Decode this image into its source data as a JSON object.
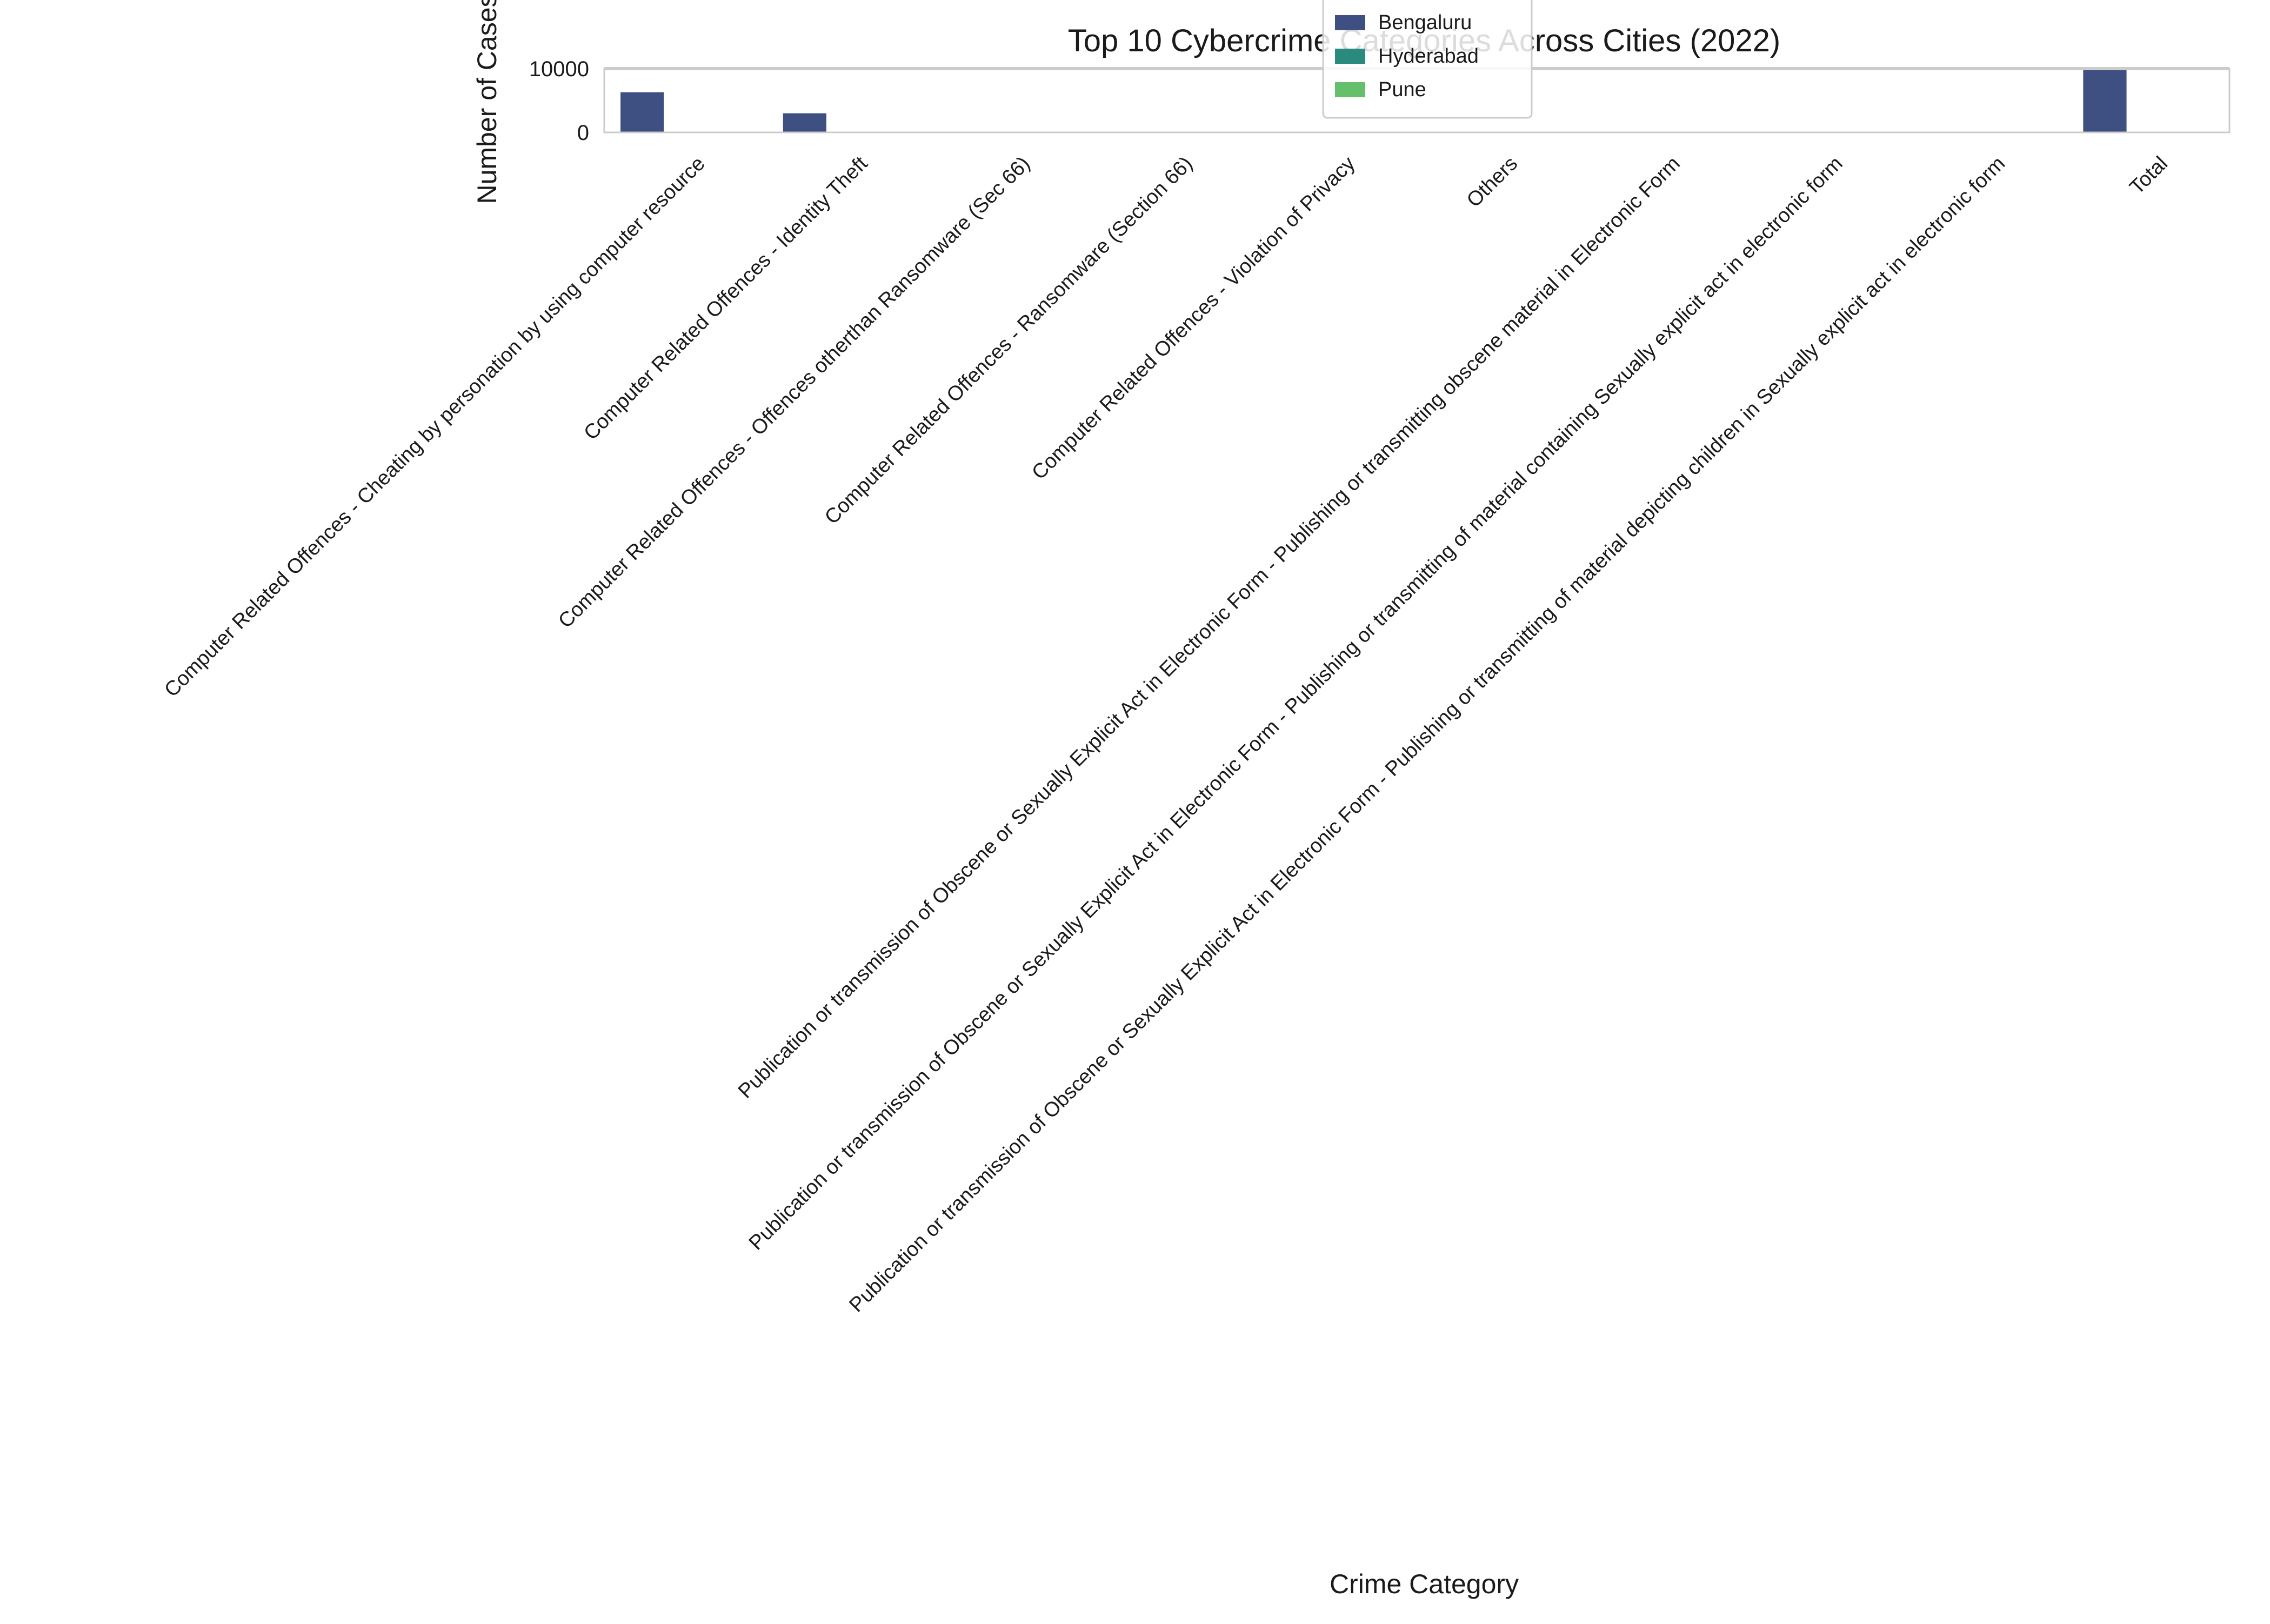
{
  "chart_data": {
    "type": "bar",
    "title": "Top 10 Cybercrime Categories Across Cities (2022)",
    "xlabel": "Crime Category",
    "ylabel": "Number of Cases",
    "ylim": [
      0,
      10000
    ],
    "yticks": [
      0,
      10000
    ],
    "grid": false,
    "legend_position": "top-center",
    "categories": [
      "Computer Related Offences - Cheating by personation by using computer resource",
      "Computer Related Offences - Identity Theft",
      "Computer Related Offences - Offences otherthan Ransomware (Sec 66)",
      "Computer Related Offences - Ransomware (Section 66)",
      "Computer Related Offences - Violation of Privacy",
      "Others",
      "Publication or transmission of Obscene or Sexually Explicit Act in Electronic Form - Publishing or transmitting obscene material in Electronic Form",
      "Publication or transmission of Obscene or Sexually Explicit Act in Electronic Form - Publishing or transmitting of material containing Sexually explicit act in electronic form",
      "Publication or transmission of Obscene or Sexually Explicit Act in Electronic Form - Publishing or transmitting of material depicting children in Sexually explicit act in electronic form",
      "Total"
    ],
    "series": [
      {
        "name": "Bengaluru",
        "color": "#3e4f82",
        "values": [
          6300,
          3000,
          0,
          0,
          0,
          0,
          0,
          0,
          0,
          9900
        ]
      },
      {
        "name": "Hyderabad",
        "color": "#2a8a7d",
        "values": [
          0,
          0,
          0,
          0,
          0,
          0,
          0,
          0,
          0,
          0
        ]
      },
      {
        "name": "Pune",
        "color": "#66bf6b",
        "values": [
          0,
          0,
          0,
          0,
          0,
          0,
          0,
          0,
          0,
          0
        ]
      }
    ]
  }
}
